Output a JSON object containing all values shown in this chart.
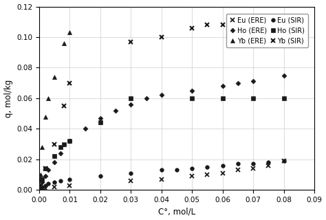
{
  "title": "",
  "xlabel": "C°, mol/L",
  "ylabel": "q, mol/kg",
  "xlim": [
    0,
    0.09
  ],
  "ylim": [
    0,
    0.12
  ],
  "xticks": [
    0.0,
    0.01,
    0.02,
    0.03,
    0.04,
    0.05,
    0.06,
    0.07,
    0.08,
    0.09
  ],
  "yticks": [
    0.0,
    0.02,
    0.04,
    0.06,
    0.08,
    0.1,
    0.12
  ],
  "background_color": "#ffffff",
  "grid_color": "#cccccc",
  "Eu_ERE_x": [
    0.0003,
    0.001,
    0.002,
    0.005,
    0.01,
    0.03,
    0.04,
    0.05,
    0.055,
    0.06,
    0.065,
    0.07,
    0.075,
    0.08
  ],
  "Eu_ERE_y": [
    0.0005,
    0.001,
    0.001,
    0.002,
    0.003,
    0.006,
    0.007,
    0.009,
    0.01,
    0.011,
    0.013,
    0.014,
    0.016,
    0.019
  ],
  "Ho_ERE_x": [
    0.0003,
    0.001,
    0.002,
    0.003,
    0.005,
    0.007,
    0.01,
    0.015,
    0.02,
    0.025,
    0.03,
    0.035,
    0.04,
    0.05,
    0.06,
    0.065,
    0.07,
    0.08
  ],
  "Ho_ERE_y": [
    0.002,
    0.005,
    0.009,
    0.013,
    0.018,
    0.024,
    0.032,
    0.04,
    0.047,
    0.052,
    0.056,
    0.06,
    0.062,
    0.065,
    0.068,
    0.07,
    0.071,
    0.075
  ],
  "Yb_ERE_x": [
    0.0003,
    0.0005,
    0.001,
    0.002,
    0.003,
    0.005,
    0.008,
    0.01
  ],
  "Yb_ERE_y": [
    0.003,
    0.01,
    0.028,
    0.048,
    0.06,
    0.074,
    0.096,
    0.103
  ],
  "Eu_SIR_x": [
    0.0003,
    0.0005,
    0.001,
    0.002,
    0.003,
    0.005,
    0.007,
    0.01,
    0.02,
    0.03,
    0.04,
    0.045,
    0.05,
    0.055,
    0.06,
    0.065,
    0.07,
    0.075,
    0.08
  ],
  "Eu_SIR_y": [
    0.0005,
    0.001,
    0.002,
    0.003,
    0.004,
    0.005,
    0.006,
    0.007,
    0.009,
    0.011,
    0.013,
    0.013,
    0.014,
    0.015,
    0.016,
    0.017,
    0.017,
    0.018,
    0.019
  ],
  "Ho_SIR_x": [
    0.0003,
    0.001,
    0.002,
    0.005,
    0.007,
    0.008,
    0.01,
    0.02,
    0.03,
    0.05,
    0.06,
    0.07,
    0.08
  ],
  "Ho_SIR_y": [
    0.003,
    0.007,
    0.014,
    0.022,
    0.028,
    0.03,
    0.032,
    0.044,
    0.06,
    0.06,
    0.06,
    0.06,
    0.06
  ],
  "Yb_SIR_x": [
    0.0003,
    0.0005,
    0.001,
    0.002,
    0.005,
    0.008,
    0.01,
    0.03,
    0.04,
    0.05,
    0.055,
    0.06,
    0.065
  ],
  "Yb_SIR_y": [
    0.001,
    0.003,
    0.007,
    0.014,
    0.03,
    0.055,
    0.07,
    0.097,
    0.1,
    0.106,
    0.108,
    0.108,
    0.108
  ],
  "fit_color": "#1a1a1a"
}
